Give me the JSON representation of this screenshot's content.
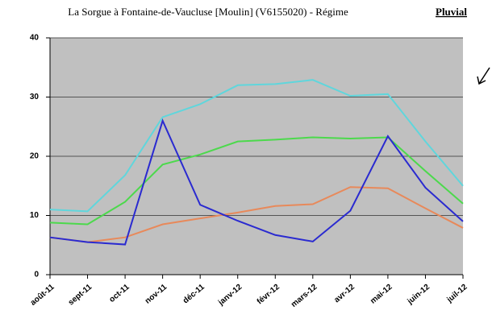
{
  "chart_data": {
    "type": "line",
    "title": "La Sorgue à Fontaine-de-Vaucluse [Moulin] (V6155020) - Régime",
    "title_emphasis": "Pluvial",
    "categories": [
      "août-11",
      "sept-11",
      "oct-11",
      "nov-11",
      "déc-11",
      "janv-12",
      "févr-12",
      "mars-12",
      "avr-12",
      "mai-12",
      "juin-12",
      "juil-12"
    ],
    "series": [
      {
        "color": "#5fd6dc",
        "values": [
          11.0,
          10.7,
          16.8,
          26.6,
          28.8,
          32.0,
          32.2,
          32.9,
          30.2,
          30.5,
          22.5,
          15.0
        ]
      },
      {
        "color": "#4cd94c",
        "values": [
          8.8,
          8.5,
          12.3,
          18.6,
          20.3,
          22.5,
          22.8,
          23.2,
          23.0,
          23.2,
          17.5,
          12.0
        ]
      },
      {
        "color": "#e8895a",
        "values": [
          6.3,
          5.5,
          6.3,
          8.5,
          9.5,
          10.5,
          11.6,
          11.9,
          14.8,
          14.6,
          11.2,
          7.9
        ]
      },
      {
        "color": "#2a2ad0",
        "values": [
          6.3,
          5.5,
          5.1,
          26.0,
          11.8,
          9.1,
          6.7,
          5.6,
          10.8,
          23.4,
          14.7,
          9.0
        ]
      }
    ],
    "ylim": [
      0,
      40
    ],
    "yticks": [
      0,
      10,
      20,
      30,
      40
    ],
    "grid": true
  }
}
